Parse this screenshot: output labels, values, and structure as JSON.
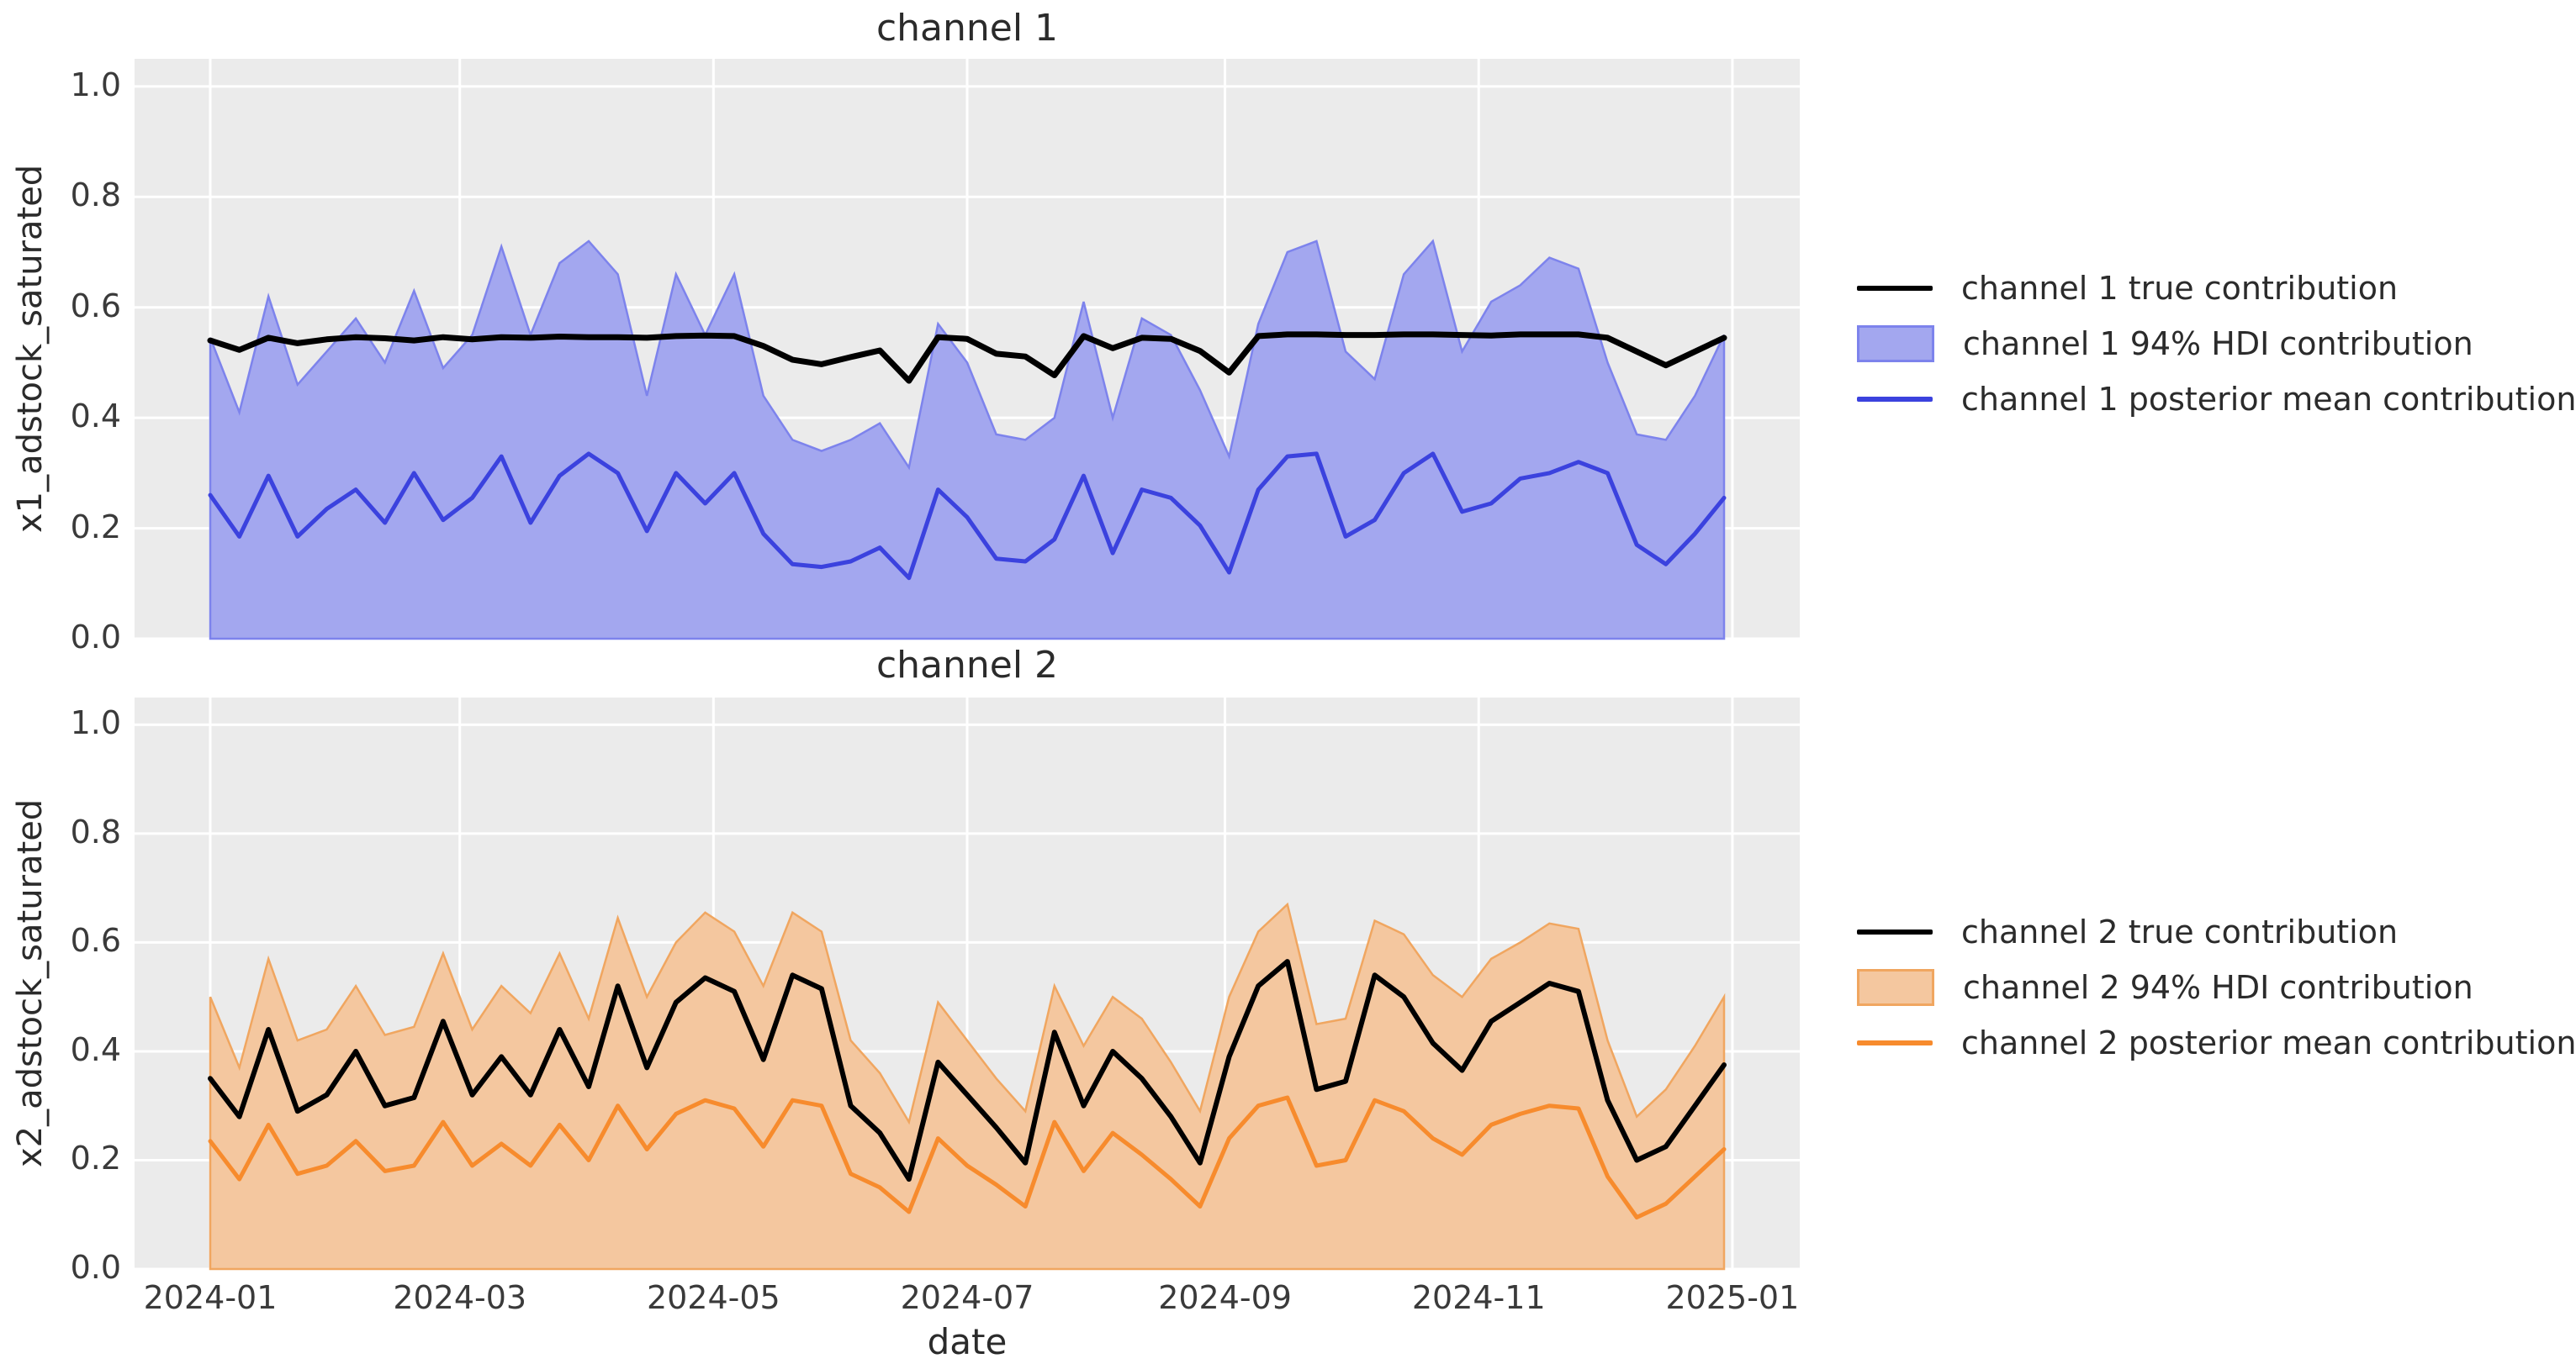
{
  "figure": {
    "background": "#ffffff",
    "axes_background": "#ebebeb",
    "grid_color": "#ffffff",
    "text_color": "#2b2b2b"
  },
  "xlabel": "date",
  "y_ticks": [
    "0.0",
    "0.2",
    "0.4",
    "0.6",
    "0.8",
    "1.0"
  ],
  "x_ticks": [
    {
      "label": "2024-01",
      "date": "2024-01-01"
    },
    {
      "label": "2024-03",
      "date": "2024-03-01"
    },
    {
      "label": "2024-05",
      "date": "2024-05-01"
    },
    {
      "label": "2024-07",
      "date": "2024-07-01"
    },
    {
      "label": "2024-09",
      "date": "2024-09-01"
    },
    {
      "label": "2024-11",
      "date": "2024-11-01"
    },
    {
      "label": "2025-01",
      "date": "2025-01-01"
    }
  ],
  "chart_data": [
    {
      "type": "line",
      "title": "channel 1",
      "ylabel": "x1_adstock_saturated",
      "xlabel": "date",
      "ylim": [
        0,
        1.05
      ],
      "grid": true,
      "legend_position": "right of axes",
      "x": [
        "2024-01-01",
        "2024-01-08",
        "2024-01-15",
        "2024-01-22",
        "2024-01-29",
        "2024-02-05",
        "2024-02-12",
        "2024-02-19",
        "2024-02-26",
        "2024-03-04",
        "2024-03-11",
        "2024-03-18",
        "2024-03-25",
        "2024-04-01",
        "2024-04-08",
        "2024-04-15",
        "2024-04-22",
        "2024-04-29",
        "2024-05-06",
        "2024-05-13",
        "2024-05-20",
        "2024-05-27",
        "2024-06-03",
        "2024-06-10",
        "2024-06-17",
        "2024-06-24",
        "2024-07-01",
        "2024-07-08",
        "2024-07-15",
        "2024-07-22",
        "2024-07-29",
        "2024-08-05",
        "2024-08-12",
        "2024-08-19",
        "2024-08-26",
        "2024-09-02",
        "2024-09-09",
        "2024-09-16",
        "2024-09-23",
        "2024-09-30",
        "2024-10-07",
        "2024-10-14",
        "2024-10-21",
        "2024-10-28",
        "2024-11-04",
        "2024-11-11",
        "2024-11-18",
        "2024-11-25",
        "2024-12-02",
        "2024-12-09",
        "2024-12-16",
        "2024-12-23",
        "2024-12-30"
      ],
      "series": [
        {
          "name": "channel 1 94% HDI contribution",
          "kind": "band",
          "fill_color": "#a3a7ef",
          "edge_color": "#7d83ec",
          "lower": 0.0,
          "upper": [
            0.545,
            0.41,
            0.62,
            0.46,
            0.52,
            0.58,
            0.5,
            0.63,
            0.49,
            0.55,
            0.71,
            0.55,
            0.68,
            0.72,
            0.66,
            0.44,
            0.66,
            0.55,
            0.66,
            0.44,
            0.36,
            0.34,
            0.36,
            0.39,
            0.31,
            0.57,
            0.5,
            0.37,
            0.36,
            0.4,
            0.61,
            0.4,
            0.58,
            0.55,
            0.45,
            0.33,
            0.57,
            0.7,
            0.72,
            0.52,
            0.47,
            0.66,
            0.72,
            0.52,
            0.61,
            0.64,
            0.69,
            0.67,
            0.5,
            0.37,
            0.36,
            0.44,
            0.55
          ]
        },
        {
          "name": "channel 1 posterior mean contribution",
          "kind": "line",
          "color": "#3b42de",
          "width": 5,
          "values": [
            0.26,
            0.185,
            0.295,
            0.185,
            0.235,
            0.27,
            0.21,
            0.3,
            0.215,
            0.255,
            0.33,
            0.21,
            0.295,
            0.335,
            0.3,
            0.195,
            0.3,
            0.245,
            0.3,
            0.19,
            0.135,
            0.13,
            0.14,
            0.165,
            0.11,
            0.27,
            0.22,
            0.145,
            0.14,
            0.18,
            0.295,
            0.155,
            0.27,
            0.255,
            0.205,
            0.12,
            0.27,
            0.33,
            0.335,
            0.185,
            0.215,
            0.3,
            0.335,
            0.23,
            0.245,
            0.29,
            0.3,
            0.32,
            0.3,
            0.17,
            0.135,
            0.19,
            0.255
          ]
        },
        {
          "name": "channel 1 true contribution",
          "kind": "line",
          "color": "#000000",
          "width": 7,
          "values": [
            0.54,
            0.523,
            0.545,
            0.535,
            0.542,
            0.546,
            0.544,
            0.54,
            0.546,
            0.542,
            0.546,
            0.545,
            0.547,
            0.546,
            0.546,
            0.545,
            0.548,
            0.549,
            0.548,
            0.53,
            0.505,
            0.497,
            0.51,
            0.522,
            0.467,
            0.546,
            0.543,
            0.516,
            0.511,
            0.477,
            0.548,
            0.526,
            0.545,
            0.543,
            0.521,
            0.482,
            0.548,
            0.551,
            0.551,
            0.55,
            0.55,
            0.551,
            0.551,
            0.55,
            0.549,
            0.551,
            0.551,
            0.551,
            0.545,
            0.52,
            0.495,
            0.52,
            0.545
          ]
        }
      ],
      "legend": [
        {
          "label": "channel 1 true contribution",
          "swatch": "line",
          "color": "#000000"
        },
        {
          "label": "channel 1 94% HDI contribution",
          "swatch": "patch",
          "fill_color": "#a3a7ef",
          "edge_color": "#7d83ec"
        },
        {
          "label": "channel 1 posterior mean contribution",
          "swatch": "line",
          "color": "#3b42de"
        }
      ]
    },
    {
      "type": "line",
      "title": "channel 2",
      "ylabel": "x2_adstock_saturated",
      "xlabel": "date",
      "ylim": [
        0,
        1.05
      ],
      "grid": true,
      "legend_position": "right of axes",
      "x": [
        "2024-01-01",
        "2024-01-08",
        "2024-01-15",
        "2024-01-22",
        "2024-01-29",
        "2024-02-05",
        "2024-02-12",
        "2024-02-19",
        "2024-02-26",
        "2024-03-04",
        "2024-03-11",
        "2024-03-18",
        "2024-03-25",
        "2024-04-01",
        "2024-04-08",
        "2024-04-15",
        "2024-04-22",
        "2024-04-29",
        "2024-05-06",
        "2024-05-13",
        "2024-05-20",
        "2024-05-27",
        "2024-06-03",
        "2024-06-10",
        "2024-06-17",
        "2024-06-24",
        "2024-07-01",
        "2024-07-08",
        "2024-07-15",
        "2024-07-22",
        "2024-07-29",
        "2024-08-05",
        "2024-08-12",
        "2024-08-19",
        "2024-08-26",
        "2024-09-02",
        "2024-09-09",
        "2024-09-16",
        "2024-09-23",
        "2024-09-30",
        "2024-10-07",
        "2024-10-14",
        "2024-10-21",
        "2024-10-28",
        "2024-11-04",
        "2024-11-11",
        "2024-11-18",
        "2024-11-25",
        "2024-12-02",
        "2024-12-09",
        "2024-12-16",
        "2024-12-23",
        "2024-12-30"
      ],
      "series": [
        {
          "name": "channel 2 94% HDI contribution",
          "kind": "band",
          "fill_color": "#f4c79f",
          "edge_color": "#f0a660",
          "lower": 0.0,
          "upper": [
            0.5,
            0.37,
            0.57,
            0.42,
            0.44,
            0.52,
            0.43,
            0.445,
            0.58,
            0.44,
            0.52,
            0.47,
            0.58,
            0.46,
            0.645,
            0.5,
            0.6,
            0.655,
            0.62,
            0.52,
            0.655,
            0.62,
            0.42,
            0.36,
            0.27,
            0.49,
            0.42,
            0.35,
            0.29,
            0.52,
            0.41,
            0.5,
            0.46,
            0.38,
            0.29,
            0.5,
            0.62,
            0.67,
            0.45,
            0.46,
            0.64,
            0.615,
            0.54,
            0.5,
            0.57,
            0.6,
            0.635,
            0.625,
            0.42,
            0.28,
            0.33,
            0.41,
            0.5
          ]
        },
        {
          "name": "channel 2 posterior mean contribution",
          "kind": "line",
          "color": "#f78b2d",
          "width": 5,
          "values": [
            0.235,
            0.165,
            0.265,
            0.175,
            0.19,
            0.235,
            0.18,
            0.19,
            0.27,
            0.19,
            0.23,
            0.19,
            0.265,
            0.2,
            0.3,
            0.22,
            0.285,
            0.31,
            0.295,
            0.225,
            0.31,
            0.3,
            0.175,
            0.15,
            0.105,
            0.24,
            0.19,
            0.155,
            0.115,
            0.27,
            0.18,
            0.25,
            0.21,
            0.165,
            0.115,
            0.24,
            0.3,
            0.315,
            0.19,
            0.2,
            0.31,
            0.29,
            0.24,
            0.21,
            0.265,
            0.285,
            0.3,
            0.295,
            0.17,
            0.095,
            0.12,
            0.17,
            0.22
          ]
        },
        {
          "name": "channel 2 true contribution",
          "kind": "line",
          "color": "#000000",
          "width": 6,
          "values": [
            0.35,
            0.28,
            0.44,
            0.29,
            0.32,
            0.4,
            0.3,
            0.315,
            0.455,
            0.32,
            0.39,
            0.32,
            0.44,
            0.335,
            0.52,
            0.37,
            0.49,
            0.535,
            0.51,
            0.385,
            0.54,
            0.515,
            0.3,
            0.25,
            0.165,
            0.38,
            0.32,
            0.26,
            0.195,
            0.435,
            0.3,
            0.4,
            0.35,
            0.28,
            0.195,
            0.39,
            0.52,
            0.565,
            0.33,
            0.345,
            0.54,
            0.5,
            0.415,
            0.365,
            0.455,
            0.49,
            0.525,
            0.51,
            0.31,
            0.2,
            0.225,
            0.3,
            0.375
          ]
        }
      ],
      "legend": [
        {
          "label": "channel 2 true contribution",
          "swatch": "line",
          "color": "#000000"
        },
        {
          "label": "channel 2 94% HDI contribution",
          "swatch": "patch",
          "fill_color": "#f4c79f",
          "edge_color": "#f0a660"
        },
        {
          "label": "channel 2 posterior mean contribution",
          "swatch": "line",
          "color": "#f78b2d"
        }
      ]
    }
  ]
}
